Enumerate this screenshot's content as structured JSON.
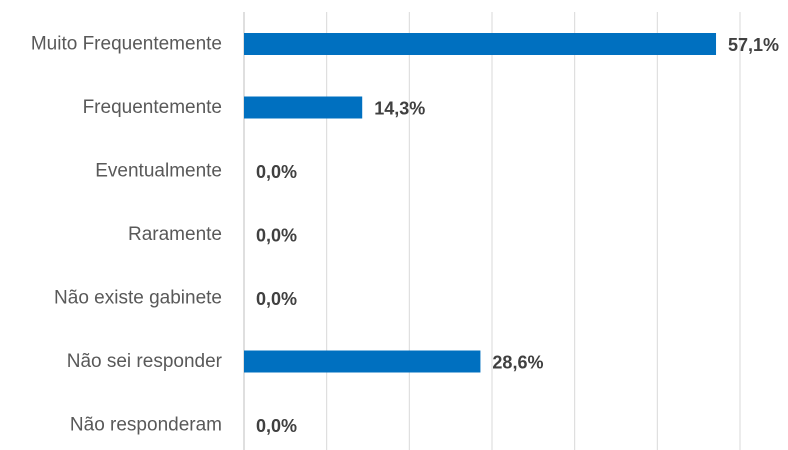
{
  "chart_data": {
    "type": "bar",
    "orientation": "horizontal",
    "categories": [
      "Muito Frequentemente",
      "Frequentemente",
      "Eventualmente",
      "Raramente",
      "Não existe gabinete",
      "Não sei responder",
      "Não responderam"
    ],
    "values": [
      57.1,
      14.3,
      0.0,
      0.0,
      0.0,
      28.6,
      0.0
    ],
    "value_labels": [
      "57,1%",
      "14,3%",
      "0,0%",
      "0,0%",
      "0,0%",
      "28,6%",
      "0,0%"
    ],
    "xlim": [
      0,
      60
    ],
    "grid": true,
    "bar_color": "#0070C0",
    "gridline_color": "#D9D9D9"
  }
}
